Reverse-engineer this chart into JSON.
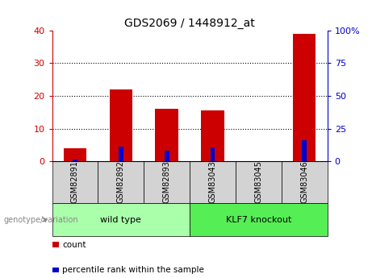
{
  "title": "GDS2069 / 1448912_at",
  "categories": [
    "GSM82891",
    "GSM82892",
    "GSM82893",
    "GSM83043",
    "GSM83045",
    "GSM83046"
  ],
  "count_values": [
    4,
    22,
    16,
    15.5,
    0,
    39
  ],
  "percentile_values": [
    1.5,
    11,
    8,
    10.5,
    0,
    16
  ],
  "group_labels": [
    "wild type",
    "KLF7 knockout"
  ],
  "group_colors": [
    "#aaffaa",
    "#55ee55"
  ],
  "ylim_left": [
    0,
    40
  ],
  "ylim_right": [
    0,
    100
  ],
  "yticks_left": [
    0,
    10,
    20,
    30,
    40
  ],
  "yticks_right": [
    0,
    25,
    50,
    75,
    100
  ],
  "bar_color_count": "#cc0000",
  "bar_color_percentile": "#0000cc",
  "bar_width": 0.5,
  "left_tick_color": "#cc0000",
  "right_tick_color": "#0000cc",
  "category_box_color": "#d3d3d3",
  "legend_items": [
    "count",
    "percentile rank within the sample"
  ],
  "genotype_label": "genotype/variation"
}
